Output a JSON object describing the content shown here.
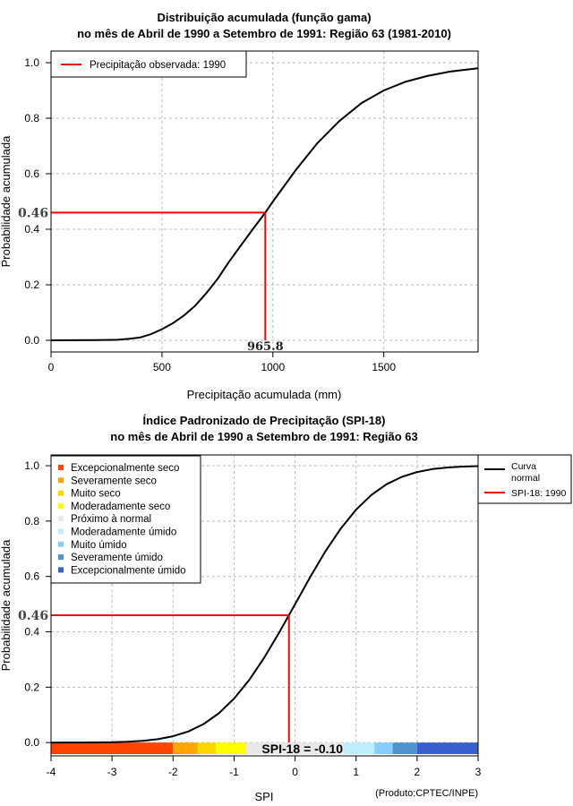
{
  "chart_data": [
    {
      "type": "line",
      "title_line1": "Distribuição acumulada (função gama)",
      "title_line2": "no mês de Abril de 1990 a Setembro de 1991: Região 63 (1981-2010)",
      "xlabel": "Precipitação acumulada (mm)",
      "ylabel": "Probabilidade acumulada",
      "xlim": [
        0,
        1925
      ],
      "ylim": [
        -0.042,
        1.042
      ],
      "xticks": [
        0,
        500,
        1000,
        1500
      ],
      "xtick_labels": [
        "0",
        "500",
        "1000",
        "1500"
      ],
      "yticks": [
        0,
        0.2,
        0.4,
        0.6,
        0.8,
        1.0
      ],
      "ytick_labels": [
        "0.0",
        "0.2",
        "0.4",
        "0.6",
        "0.8",
        "1.0"
      ],
      "grid": true,
      "legend_position": "top-left",
      "legend": [
        {
          "label": "Precipitação observada: 1990",
          "color": "#ff0000"
        }
      ],
      "series": [
        {
          "name": "CDF gama",
          "color": "#000000",
          "x": [
            0,
            200,
            300,
            350,
            400,
            450,
            500,
            550,
            600,
            650,
            700,
            750,
            800,
            850,
            900,
            965.8,
            1000,
            1050,
            1100,
            1200,
            1300,
            1400,
            1500,
            1600,
            1700,
            1800,
            1925
          ],
          "y": [
            0,
            0.001,
            0.002,
            0.005,
            0.01,
            0.022,
            0.04,
            0.062,
            0.09,
            0.125,
            0.17,
            0.22,
            0.28,
            0.335,
            0.39,
            0.46,
            0.5,
            0.555,
            0.61,
            0.71,
            0.79,
            0.855,
            0.9,
            0.932,
            0.953,
            0.968,
            0.98
          ]
        }
      ],
      "observed": {
        "x": 965.8,
        "y": 0.46,
        "x_label": "965.8",
        "y_label": "0.46",
        "color": "#ff0000"
      }
    },
    {
      "type": "line",
      "title_line1": "Índice Padronizado de Precipitação (SPI-18)",
      "title_line2": "no mês de Abril de 1990 a Setembro de 1991: Região 63",
      "xlabel": "SPI",
      "ylabel": "Probabilidade acumulada",
      "xlim": [
        -4,
        3
      ],
      "ylim": [
        -0.048,
        1.039
      ],
      "xticks": [
        -4,
        -3,
        -2,
        -1,
        0,
        1,
        2,
        3
      ],
      "xtick_labels": [
        "-4",
        "-3",
        "-2",
        "-1",
        "0",
        "1",
        "2",
        "3"
      ],
      "yticks": [
        0,
        0.2,
        0.4,
        0.6,
        0.8,
        1.0
      ],
      "ytick_labels": [
        "0.0",
        "0.2",
        "0.4",
        "0.6",
        "0.8",
        "1.0"
      ],
      "grid": true,
      "legend_position": "top-left",
      "category_legend": [
        {
          "label": "Excepcionalmente seco",
          "color": "#ff4500"
        },
        {
          "label": "Severamente seco",
          "color": "#ffa500"
        },
        {
          "label": "Muito seco",
          "color": "#ffd700"
        },
        {
          "label": "Moderadamente seco",
          "color": "#ffff00"
        },
        {
          "label": "Próximo à normal",
          "color": "#e8e8e8"
        },
        {
          "label": "Moderadamente úmido",
          "color": "#bfefff"
        },
        {
          "label": "Muito úmido",
          "color": "#87cefa"
        },
        {
          "label": "Severamente úmido",
          "color": "#4f94cd"
        },
        {
          "label": "Excepcionalmente úmido",
          "color": "#3a5fcd"
        }
      ],
      "color_bar": [
        {
          "from": -4,
          "to": -2,
          "color": "#ff4500"
        },
        {
          "from": -2,
          "to": -1.6,
          "color": "#ffa500"
        },
        {
          "from": -1.6,
          "to": -1.3,
          "color": "#ffd700"
        },
        {
          "from": -1.3,
          "to": -0.8,
          "color": "#ffff00"
        },
        {
          "from": -0.8,
          "to": 0.8,
          "color": "#e8e8e8"
        },
        {
          "from": 0.8,
          "to": 1.3,
          "color": "#bfefff"
        },
        {
          "from": 1.3,
          "to": 1.6,
          "color": "#87cefa"
        },
        {
          "from": 1.6,
          "to": 2,
          "color": "#4f94cd"
        },
        {
          "from": 2,
          "to": 3,
          "color": "#3a5fcd"
        }
      ],
      "side_legend": [
        {
          "label_line1": "Curva",
          "label_line2": "normal",
          "color": "#000000"
        },
        {
          "label_line1": "SPI-18: 1990",
          "label_line2": "",
          "color": "#ff0000"
        }
      ],
      "series": [
        {
          "name": "Curva normal",
          "color": "#000000",
          "x": [
            -4,
            -3.75,
            -3.5,
            -3.25,
            -3,
            -2.75,
            -2.5,
            -2.25,
            -2,
            -1.75,
            -1.5,
            -1.25,
            -1,
            -0.75,
            -0.5,
            -0.25,
            0,
            0.25,
            0.5,
            0.75,
            1,
            1.25,
            1.5,
            1.75,
            2,
            2.25,
            2.5,
            2.75,
            3
          ],
          "y": [
            0,
            0.0001,
            0.0002,
            0.0006,
            0.0013,
            0.003,
            0.0062,
            0.0122,
            0.0228,
            0.0401,
            0.0668,
            0.1056,
            0.1587,
            0.2266,
            0.3085,
            0.4013,
            0.5,
            0.5987,
            0.6915,
            0.7734,
            0.8413,
            0.8944,
            0.9332,
            0.9599,
            0.9772,
            0.9878,
            0.9938,
            0.997,
            0.9987
          ]
        }
      ],
      "observed": {
        "x": -0.1,
        "y": 0.46,
        "y_label": "0.46",
        "spi_label": "SPI-18 = -0.10",
        "color": "#ff0000"
      },
      "credit": "(Produto:CPTEC/INPE)"
    }
  ]
}
